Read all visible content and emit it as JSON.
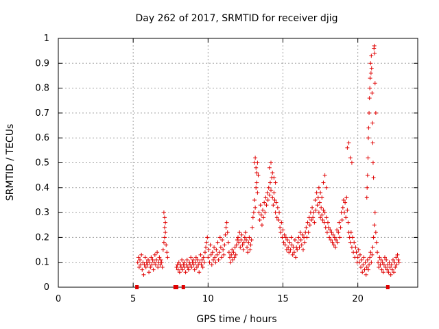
{
  "chart_data": {
    "type": "scatter",
    "title": "Day 262 of 2017, SRMTID for receiver djig",
    "xlabel": "GPS time / hours",
    "ylabel": "SRMTID / TECUs",
    "xlim": [
      0,
      24
    ],
    "ylim": [
      0,
      1
    ],
    "x_ticks": [
      0,
      5,
      10,
      15,
      20
    ],
    "x_tick_labels": [
      "0",
      "5",
      "10",
      "15",
      "20"
    ],
    "y_ticks": [
      0,
      0.1,
      0.2,
      0.3,
      0.4,
      0.5,
      0.6,
      0.7,
      0.8,
      0.9,
      1
    ],
    "y_tick_labels": [
      "0",
      "0.1",
      "0.2",
      "0.3",
      "0.4",
      "0.5",
      "0.6",
      "0.7",
      "0.8",
      "0.9",
      "1"
    ],
    "grid": true,
    "marker": "+",
    "color": "#e00000",
    "data_gap_markers_hours": [
      5.25,
      7.8,
      7.9,
      8.35,
      22.0
    ],
    "series": [
      {
        "name": "SRMTID",
        "x": [
          5.3,
          5.35,
          5.4,
          5.45,
          5.5,
          5.55,
          5.6,
          5.65,
          5.7,
          5.75,
          5.8,
          5.85,
          5.9,
          5.95,
          6.0,
          6.05,
          6.1,
          6.15,
          6.2,
          6.25,
          6.3,
          6.35,
          6.4,
          6.45,
          6.5,
          6.55,
          6.6,
          6.65,
          6.7,
          6.75,
          6.8,
          6.85,
          6.9,
          6.95,
          7.0,
          7.05,
          7.1,
          7.15,
          7.2,
          7.25,
          7.3,
          7.05,
          7.1,
          7.15,
          7.1,
          7.9,
          7.95,
          8.0,
          8.05,
          8.1,
          8.15,
          8.2,
          8.25,
          8.3,
          8.35,
          8.4,
          8.45,
          8.5,
          8.55,
          8.6,
          8.65,
          8.7,
          8.75,
          8.8,
          8.85,
          8.9,
          8.95,
          9.0,
          9.05,
          9.1,
          9.15,
          9.2,
          9.25,
          9.3,
          9.35,
          9.4,
          9.45,
          9.5,
          9.55,
          9.6,
          9.65,
          9.7,
          9.75,
          9.8,
          9.85,
          9.9,
          9.95,
          10.0,
          10.05,
          10.1,
          10.15,
          10.2,
          10.25,
          10.3,
          10.35,
          10.4,
          10.45,
          10.5,
          10.55,
          10.6,
          10.65,
          10.7,
          10.75,
          10.8,
          10.85,
          10.9,
          10.95,
          11.0,
          11.05,
          11.1,
          11.15,
          11.2,
          11.25,
          11.3,
          11.35,
          11.4,
          11.45,
          11.5,
          11.55,
          11.6,
          11.65,
          11.7,
          11.75,
          11.8,
          11.85,
          11.9,
          11.95,
          12.0,
          12.05,
          12.1,
          12.15,
          12.2,
          12.25,
          12.3,
          12.35,
          12.4,
          12.45,
          12.5,
          12.55,
          12.6,
          12.65,
          12.7,
          12.75,
          12.8,
          12.85,
          12.9,
          12.95,
          13.0,
          13.05,
          13.1,
          13.15,
          13.2,
          13.25,
          13.3,
          13.35,
          13.4,
          13.45,
          13.5,
          13.55,
          13.6,
          13.65,
          13.7,
          13.75,
          13.8,
          13.85,
          13.9,
          13.95,
          14.0,
          14.05,
          14.1,
          14.15,
          14.2,
          14.25,
          14.3,
          14.35,
          14.4,
          14.45,
          14.5,
          14.55,
          14.6,
          14.65,
          14.7,
          14.75,
          14.8,
          14.85,
          14.9,
          14.95,
          15.0,
          15.05,
          15.1,
          15.15,
          15.2,
          15.25,
          15.3,
          15.35,
          15.4,
          15.45,
          15.5,
          15.55,
          15.6,
          15.65,
          15.7,
          15.75,
          15.8,
          15.85,
          15.9,
          15.95,
          16.0,
          16.05,
          16.1,
          16.15,
          16.2,
          16.25,
          16.3,
          16.35,
          16.4,
          16.45,
          16.5,
          16.55,
          16.6,
          16.65,
          16.7,
          16.75,
          16.8,
          16.85,
          16.9,
          16.95,
          17.0,
          17.05,
          17.1,
          17.15,
          17.2,
          17.25,
          17.3,
          17.35,
          17.4,
          17.45,
          17.5,
          17.55,
          17.6,
          17.65,
          17.7,
          17.75,
          17.8,
          17.85,
          17.9,
          17.95,
          18.0,
          18.05,
          18.1,
          18.15,
          18.2,
          18.25,
          18.3,
          18.35,
          18.4,
          18.45,
          18.5,
          18.55,
          18.6,
          18.65,
          18.7,
          18.75,
          18.8,
          18.85,
          18.9,
          18.95,
          19.0,
          19.05,
          19.1,
          19.15,
          19.2,
          19.25,
          19.3,
          19.35,
          19.4,
          19.45,
          19.5,
          19.55,
          19.6,
          19.65,
          19.7,
          19.75,
          19.8,
          19.85,
          19.9,
          19.95,
          20.0,
          20.05,
          20.1,
          20.15,
          20.2,
          20.25,
          20.3,
          20.35,
          20.4,
          20.45,
          20.5,
          20.55,
          20.6,
          20.65,
          20.7,
          20.75,
          20.8,
          20.85,
          20.9,
          20.95,
          21.0,
          21.05,
          21.1,
          21.15,
          21.2,
          21.25,
          21.3,
          21.35,
          21.4,
          21.45,
          21.5,
          21.55,
          21.6,
          21.65,
          21.7,
          21.75,
          21.8,
          21.85,
          21.9,
          21.95,
          22.0,
          22.05,
          22.1,
          22.15,
          22.2,
          22.25,
          22.3,
          22.35,
          22.4,
          22.45,
          22.5,
          22.55,
          22.6,
          22.65,
          22.7,
          22.75,
          20.6,
          20.62,
          20.65,
          20.68,
          20.7,
          20.72,
          20.75,
          20.78,
          20.8,
          20.82,
          20.85,
          20.88,
          20.9,
          20.92,
          20.95,
          20.98,
          21.0,
          21.02,
          21.05,
          21.08,
          21.1,
          21.12,
          21.15,
          21.2,
          13.1,
          13.15,
          13.2,
          13.25,
          13.3,
          14.1,
          14.2,
          14.3,
          14.4,
          14.5,
          17.4,
          17.5,
          17.6,
          17.7,
          17.8,
          17.9,
          19.3,
          19.4,
          19.5,
          19.6
        ],
        "y": [
          0.1,
          0.12,
          0.08,
          0.11,
          0.09,
          0.13,
          0.07,
          0.1,
          0.05,
          0.09,
          0.12,
          0.08,
          0.1,
          0.09,
          0.11,
          0.06,
          0.1,
          0.08,
          0.12,
          0.09,
          0.11,
          0.07,
          0.1,
          0.13,
          0.09,
          0.11,
          0.14,
          0.08,
          0.1,
          0.12,
          0.09,
          0.11,
          0.1,
          0.08,
          0.15,
          0.18,
          0.2,
          0.22,
          0.17,
          0.14,
          0.12,
          0.3,
          0.28,
          0.26,
          0.24,
          0.08,
          0.09,
          0.07,
          0.1,
          0.06,
          0.09,
          0.08,
          0.11,
          0.07,
          0.09,
          0.1,
          0.08,
          0.06,
          0.09,
          0.11,
          0.08,
          0.07,
          0.1,
          0.09,
          0.12,
          0.08,
          0.1,
          0.11,
          0.09,
          0.07,
          0.1,
          0.12,
          0.08,
          0.11,
          0.09,
          0.06,
          0.1,
          0.13,
          0.09,
          0.11,
          0.08,
          0.12,
          0.1,
          0.14,
          0.16,
          0.18,
          0.2,
          0.12,
          0.15,
          0.1,
          0.17,
          0.13,
          0.09,
          0.14,
          0.11,
          0.16,
          0.12,
          0.1,
          0.15,
          0.13,
          0.18,
          0.11,
          0.14,
          0.2,
          0.16,
          0.12,
          0.19,
          0.15,
          0.13,
          0.17,
          0.21,
          0.24,
          0.26,
          0.22,
          0.18,
          0.14,
          0.12,
          0.1,
          0.13,
          0.15,
          0.11,
          0.14,
          0.12,
          0.16,
          0.13,
          0.17,
          0.19,
          0.2,
          0.18,
          0.22,
          0.16,
          0.19,
          0.21,
          0.17,
          0.15,
          0.18,
          0.2,
          0.22,
          0.19,
          0.16,
          0.14,
          0.18,
          0.2,
          0.15,
          0.17,
          0.19,
          0.24,
          0.28,
          0.3,
          0.35,
          0.32,
          0.4,
          0.42,
          0.38,
          0.45,
          0.3,
          0.27,
          0.33,
          0.29,
          0.25,
          0.31,
          0.28,
          0.34,
          0.3,
          0.36,
          0.33,
          0.38,
          0.35,
          0.4,
          0.37,
          0.42,
          0.39,
          0.44,
          0.36,
          0.33,
          0.38,
          0.35,
          0.3,
          0.34,
          0.28,
          0.32,
          0.27,
          0.3,
          0.24,
          0.22,
          0.26,
          0.2,
          0.23,
          0.18,
          0.21,
          0.17,
          0.2,
          0.15,
          0.19,
          0.16,
          0.14,
          0.18,
          0.15,
          0.2,
          0.17,
          0.13,
          0.16,
          0.14,
          0.19,
          0.12,
          0.16,
          0.15,
          0.18,
          0.2,
          0.16,
          0.22,
          0.19,
          0.17,
          0.21,
          0.15,
          0.2,
          0.18,
          0.22,
          0.24,
          0.2,
          0.26,
          0.22,
          0.28,
          0.25,
          0.3,
          0.27,
          0.32,
          0.28,
          0.3,
          0.26,
          0.35,
          0.31,
          0.38,
          0.33,
          0.36,
          0.3,
          0.34,
          0.28,
          0.32,
          0.29,
          0.27,
          0.31,
          0.26,
          0.3,
          0.24,
          0.28,
          0.22,
          0.26,
          0.24,
          0.2,
          0.23,
          0.19,
          0.22,
          0.18,
          0.21,
          0.17,
          0.2,
          0.16,
          0.19,
          0.23,
          0.18,
          0.22,
          0.26,
          0.2,
          0.24,
          0.3,
          0.27,
          0.32,
          0.35,
          0.3,
          0.34,
          0.28,
          0.36,
          0.31,
          0.26,
          0.22,
          0.2,
          0.18,
          0.22,
          0.16,
          0.2,
          0.14,
          0.18,
          0.12,
          0.16,
          0.14,
          0.1,
          0.12,
          0.15,
          0.1,
          0.13,
          0.08,
          0.11,
          0.06,
          0.09,
          0.12,
          0.07,
          0.1,
          0.05,
          0.08,
          0.11,
          0.07,
          0.09,
          0.12,
          0.14,
          0.1,
          0.13,
          0.16,
          0.2,
          0.25,
          0.3,
          0.22,
          0.18,
          0.14,
          0.1,
          0.08,
          0.12,
          0.09,
          0.11,
          0.07,
          0.1,
          0.06,
          0.09,
          0.12,
          0.08,
          0.11,
          0.07,
          0.09,
          0.06,
          0.1,
          0.08,
          0.05,
          0.09,
          0.07,
          0.11,
          0.06,
          0.1,
          0.08,
          0.12,
          0.09,
          0.13,
          0.11,
          0.1,
          0.36,
          0.4,
          0.45,
          0.52,
          0.6,
          0.64,
          0.7,
          0.76,
          0.8,
          0.84,
          0.9,
          0.86,
          0.93,
          0.88,
          0.78,
          0.66,
          0.58,
          0.5,
          0.44,
          0.96,
          0.97,
          0.94,
          0.82,
          0.7,
          0.5,
          0.52,
          0.48,
          0.46,
          0.5,
          0.48,
          0.5,
          0.46,
          0.44,
          0.42,
          0.4,
          0.38,
          0.36,
          0.42,
          0.45,
          0.4,
          0.56,
          0.58,
          0.52,
          0.5
        ]
      }
    ]
  }
}
